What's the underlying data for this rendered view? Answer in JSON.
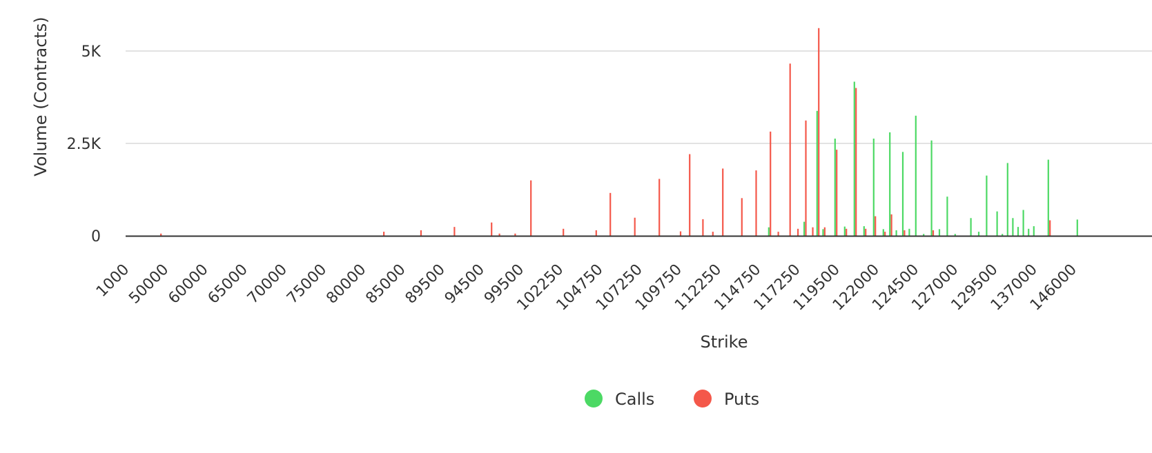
{
  "chart_data": {
    "type": "bar",
    "xlabel": "Strike",
    "ylabel": "Volume (Contracts)",
    "ylim": [
      0,
      6000
    ],
    "yticks": [
      {
        "value": 0,
        "label": "0"
      },
      {
        "value": 2500,
        "label": "2.5K"
      },
      {
        "value": 5000,
        "label": "5K"
      }
    ],
    "xtick_labels": [
      "1000",
      "50000",
      "60000",
      "65000",
      "70000",
      "75000",
      "80000",
      "85000",
      "89500",
      "94500",
      "99500",
      "102250",
      "104750",
      "107250",
      "109750",
      "112250",
      "114750",
      "117250",
      "119500",
      "122000",
      "124500",
      "127000",
      "129500",
      "137000",
      "146000"
    ],
    "grid": true,
    "legend_position": "bottom-center",
    "colors": {
      "calls": "#4cd964",
      "puts": "#f4584a",
      "grid": "#e2e2e2",
      "axis": "#333333"
    },
    "series": [
      {
        "name": "Calls",
        "color": "#4cd964",
        "points": [
          {
            "x": 114750,
            "y": 230
          },
          {
            "x": 117000,
            "y": 380
          },
          {
            "x": 118000,
            "y": 3380
          },
          {
            "x": 118500,
            "y": 180
          },
          {
            "x": 119500,
            "y": 2630
          },
          {
            "x": 120000,
            "y": 250
          },
          {
            "x": 120500,
            "y": 4170
          },
          {
            "x": 121000,
            "y": 260
          },
          {
            "x": 121500,
            "y": 2630
          },
          {
            "x": 122000,
            "y": 180
          },
          {
            "x": 122500,
            "y": 2800
          },
          {
            "x": 123000,
            "y": 150
          },
          {
            "x": 123500,
            "y": 2270
          },
          {
            "x": 124000,
            "y": 190
          },
          {
            "x": 124500,
            "y": 3250
          },
          {
            "x": 125000,
            "y": 50
          },
          {
            "x": 125500,
            "y": 2580
          },
          {
            "x": 126000,
            "y": 180
          },
          {
            "x": 126500,
            "y": 1060
          },
          {
            "x": 127000,
            "y": 50
          },
          {
            "x": 128000,
            "y": 480
          },
          {
            "x": 128500,
            "y": 110
          },
          {
            "x": 129000,
            "y": 1630
          },
          {
            "x": 130000,
            "y": 660
          },
          {
            "x": 131000,
            "y": 50
          },
          {
            "x": 132000,
            "y": 1970
          },
          {
            "x": 133000,
            "y": 480
          },
          {
            "x": 134000,
            "y": 240
          },
          {
            "x": 135000,
            "y": 700
          },
          {
            "x": 136000,
            "y": 190
          },
          {
            "x": 137000,
            "y": 260
          },
          {
            "x": 140000,
            "y": 2060
          },
          {
            "x": 146000,
            "y": 440
          }
        ]
      },
      {
        "name": "Puts",
        "color": "#f4584a",
        "points": [
          {
            "x": 50000,
            "y": 60
          },
          {
            "x": 80000,
            "y": 110
          },
          {
            "x": 85000,
            "y": 150
          },
          {
            "x": 89500,
            "y": 240
          },
          {
            "x": 94500,
            "y": 360
          },
          {
            "x": 95500,
            "y": 60
          },
          {
            "x": 97500,
            "y": 60
          },
          {
            "x": 99500,
            "y": 1500
          },
          {
            "x": 102250,
            "y": 190
          },
          {
            "x": 104000,
            "y": 150
          },
          {
            "x": 104750,
            "y": 1160
          },
          {
            "x": 106000,
            "y": 490
          },
          {
            "x": 107250,
            "y": 1540
          },
          {
            "x": 109000,
            "y": 120
          },
          {
            "x": 109750,
            "y": 2210
          },
          {
            "x": 110750,
            "y": 450
          },
          {
            "x": 111500,
            "y": 110
          },
          {
            "x": 112250,
            "y": 1820
          },
          {
            "x": 113250,
            "y": 1020
          },
          {
            "x": 114000,
            "y": 1770
          },
          {
            "x": 114750,
            "y": 2820
          },
          {
            "x": 115250,
            "y": 110
          },
          {
            "x": 116000,
            "y": 4660
          },
          {
            "x": 116500,
            "y": 190
          },
          {
            "x": 117000,
            "y": 3120
          },
          {
            "x": 117500,
            "y": 230
          },
          {
            "x": 118000,
            "y": 5620
          },
          {
            "x": 118500,
            "y": 230
          },
          {
            "x": 119500,
            "y": 2330
          },
          {
            "x": 120000,
            "y": 190
          },
          {
            "x": 120500,
            "y": 4000
          },
          {
            "x": 121000,
            "y": 190
          },
          {
            "x": 121500,
            "y": 530
          },
          {
            "x": 122000,
            "y": 110
          },
          {
            "x": 122500,
            "y": 580
          },
          {
            "x": 123500,
            "y": 150
          },
          {
            "x": 125500,
            "y": 150
          },
          {
            "x": 140000,
            "y": 420
          }
        ]
      }
    ]
  },
  "legend": {
    "items": [
      {
        "label": "Calls",
        "color": "#4cd964"
      },
      {
        "label": "Puts",
        "color": "#f4584a"
      }
    ]
  }
}
